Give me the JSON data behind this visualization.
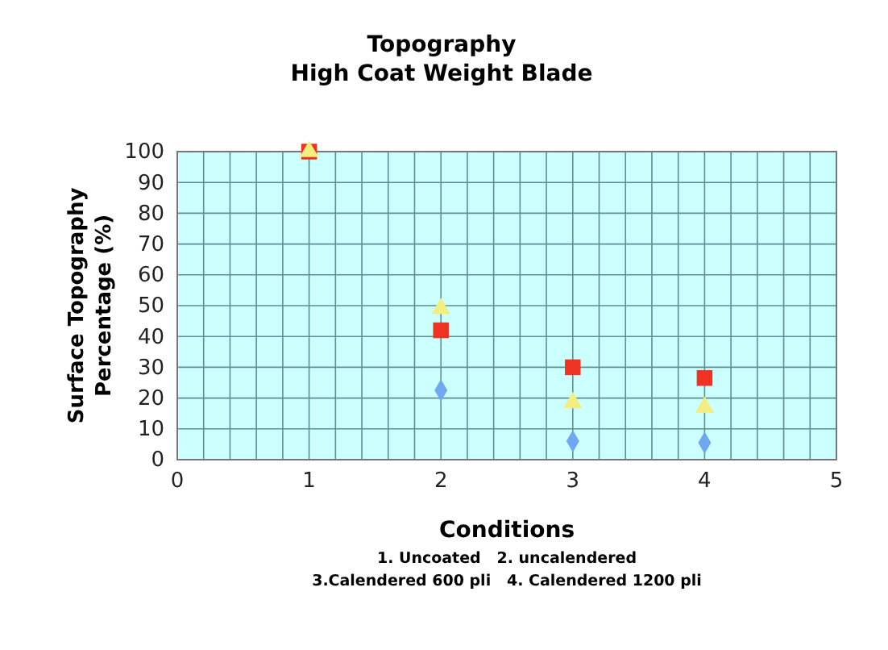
{
  "chart_data": {
    "type": "scatter",
    "title": "Topography",
    "subtitle": "High Coat Weight Blade",
    "xlabel": "Conditions",
    "ylabel": "Surface Topography Percentage (%)",
    "annotations": [
      "1. Uncoated   2. uncalendered",
      "3.Calendered 600 pli   4. Calendered 1200 pli"
    ],
    "x": [
      1,
      2,
      3,
      4
    ],
    "series": [
      {
        "color": "#6fa8f0",
        "marker": "diamond",
        "values": [
          null,
          22.5,
          6,
          5.5
        ]
      },
      {
        "color": "#ee3322",
        "marker": "square",
        "values": [
          100,
          42,
          30,
          26.5
        ]
      },
      {
        "color": "#f2ee80",
        "marker": "triangle",
        "values": [
          100,
          49,
          18.5,
          17
        ]
      }
    ],
    "xlim": [
      0,
      5
    ],
    "ylim": [
      0,
      100
    ],
    "xticks": [
      0,
      {
        "value": 0.2,
        "label": null
      },
      {
        "value": 0.4,
        "label": null
      },
      {
        "value": 0.6,
        "label": null
      },
      {
        "value": 0.8,
        "label": null
      },
      1,
      {
        "value": 1.2,
        "label": null
      },
      {
        "value": 1.4,
        "label": null
      },
      {
        "value": 1.6,
        "label": null
      },
      {
        "value": 1.8,
        "label": null
      },
      2,
      {
        "value": 2.2,
        "label": null
      },
      {
        "value": 2.4,
        "label": null
      },
      {
        "value": 2.6,
        "label": null
      },
      {
        "value": 2.8,
        "label": null
      },
      3,
      {
        "value": 3.2,
        "label": null
      },
      {
        "value": 3.4,
        "label": null
      },
      {
        "value": 3.6,
        "label": null
      },
      {
        "value": 3.8,
        "label": null
      },
      4,
      {
        "value": 4.2,
        "label": null
      },
      {
        "value": 4.4,
        "label": null
      },
      {
        "value": 4.6,
        "label": null
      },
      {
        "value": 4.8,
        "label": null
      },
      5
    ],
    "yticks": [
      0,
      10,
      20,
      30,
      40,
      50,
      60,
      70,
      80,
      90,
      100
    ],
    "grid": true
  }
}
